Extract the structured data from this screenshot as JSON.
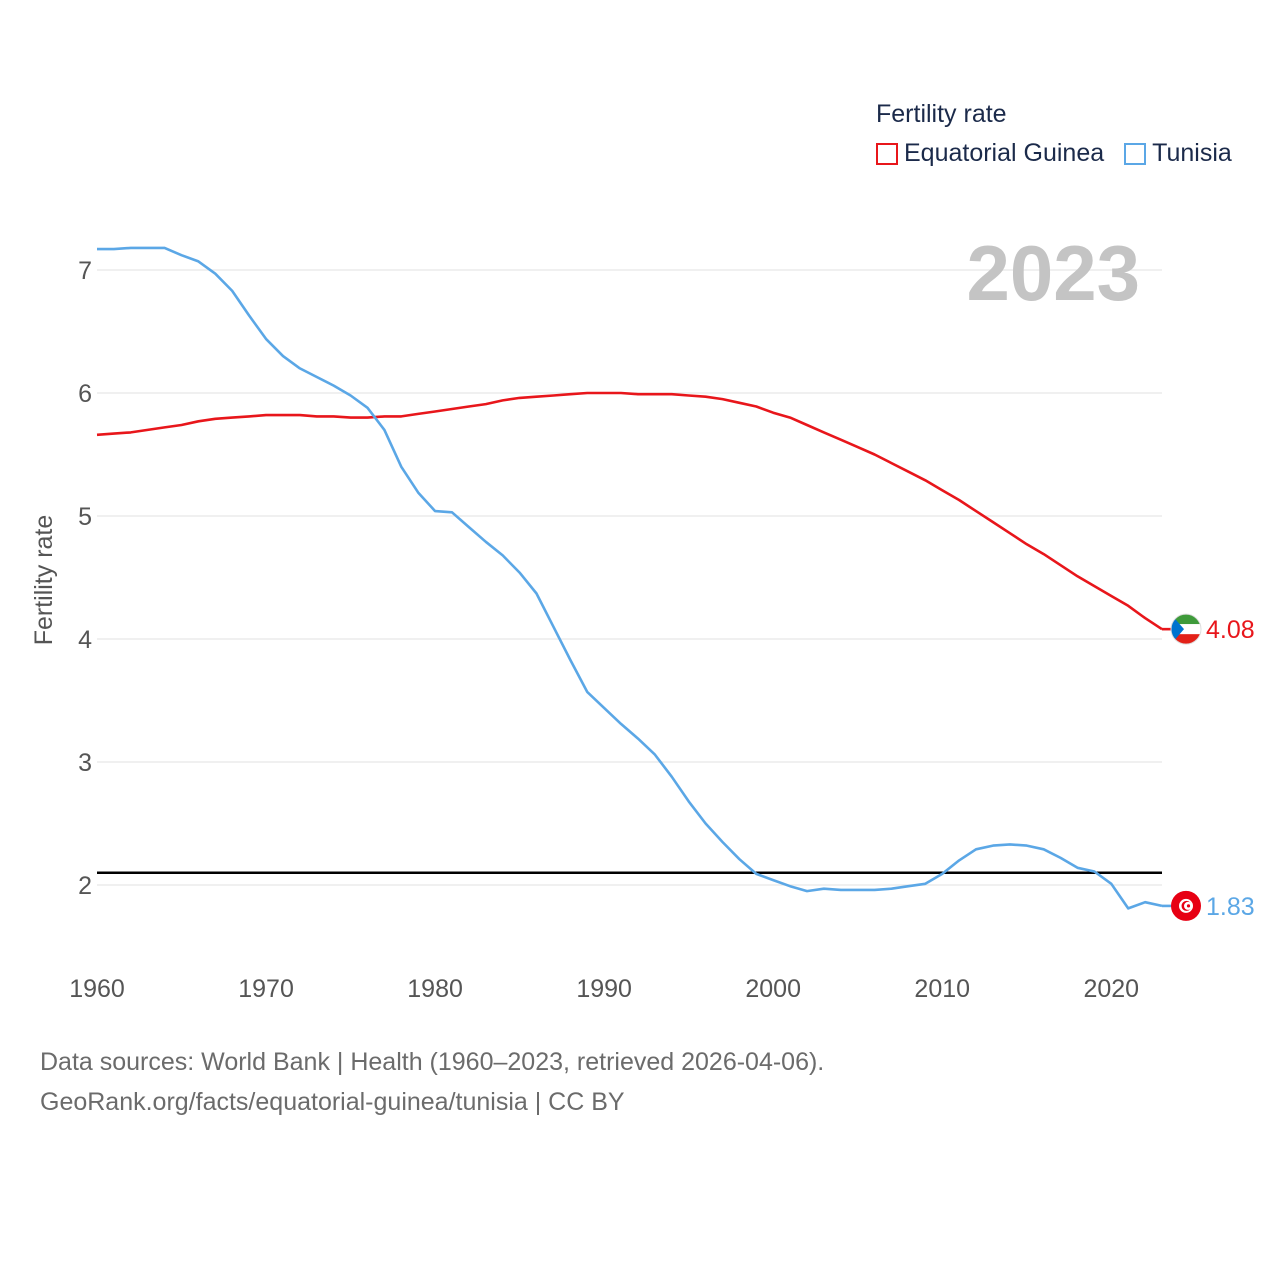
{
  "chart_data": {
    "type": "line",
    "title": "Fertility rate",
    "ylabel": "Fertility rate",
    "xlabel": "",
    "year_label": "2023",
    "xlim": [
      1960,
      2023
    ],
    "ylim": [
      1.5,
      7.3
    ],
    "x_ticks": [
      1960,
      1970,
      1980,
      1990,
      2000,
      2010,
      2020
    ],
    "y_ticks": [
      2,
      3,
      4,
      5,
      6,
      7
    ],
    "reference_line": 2.1,
    "x": [
      1960,
      1961,
      1962,
      1963,
      1964,
      1965,
      1966,
      1967,
      1968,
      1969,
      1970,
      1971,
      1972,
      1973,
      1974,
      1975,
      1976,
      1977,
      1978,
      1979,
      1980,
      1981,
      1982,
      1983,
      1984,
      1985,
      1986,
      1987,
      1988,
      1989,
      1990,
      1991,
      1992,
      1993,
      1994,
      1995,
      1996,
      1997,
      1998,
      1999,
      2000,
      2001,
      2002,
      2003,
      2004,
      2005,
      2006,
      2007,
      2008,
      2009,
      2010,
      2011,
      2012,
      2013,
      2014,
      2015,
      2016,
      2017,
      2018,
      2019,
      2020,
      2021,
      2022,
      2023
    ],
    "series": [
      {
        "name": "Equatorial Guinea",
        "color": "#e8161b",
        "end_label": "4.08",
        "values": [
          5.66,
          5.67,
          5.68,
          5.7,
          5.72,
          5.74,
          5.77,
          5.79,
          5.8,
          5.81,
          5.82,
          5.82,
          5.82,
          5.81,
          5.81,
          5.8,
          5.8,
          5.81,
          5.81,
          5.83,
          5.85,
          5.87,
          5.89,
          5.91,
          5.94,
          5.96,
          5.97,
          5.98,
          5.99,
          6.0,
          6.0,
          6.0,
          5.99,
          5.99,
          5.99,
          5.98,
          5.97,
          5.95,
          5.92,
          5.89,
          5.84,
          5.8,
          5.74,
          5.68,
          5.62,
          5.56,
          5.5,
          5.43,
          5.36,
          5.29,
          5.21,
          5.13,
          5.04,
          4.95,
          4.86,
          4.77,
          4.69,
          4.6,
          4.51,
          4.43,
          4.35,
          4.27,
          4.17,
          4.08
        ]
      },
      {
        "name": "Tunisia",
        "color": "#5ba7e6",
        "end_label": "1.83",
        "values": [
          7.17,
          7.17,
          7.18,
          7.18,
          7.18,
          7.12,
          7.07,
          6.97,
          6.83,
          6.63,
          6.44,
          6.3,
          6.2,
          6.13,
          6.06,
          5.98,
          5.88,
          5.7,
          5.4,
          5.19,
          5.04,
          5.03,
          4.91,
          4.79,
          4.68,
          4.54,
          4.37,
          4.1,
          3.83,
          3.57,
          3.44,
          3.31,
          3.19,
          3.06,
          2.88,
          2.68,
          2.5,
          2.35,
          2.21,
          2.09,
          2.04,
          1.99,
          1.95,
          1.97,
          1.96,
          1.96,
          1.96,
          1.97,
          1.99,
          2.01,
          2.09,
          2.2,
          2.29,
          2.32,
          2.33,
          2.32,
          2.29,
          2.22,
          2.14,
          2.11,
          2.01,
          1.81,
          1.86,
          1.83
        ]
      }
    ]
  },
  "legend": {
    "title": "Fertility rate",
    "items": [
      {
        "label": "Equatorial Guinea",
        "color": "#e8161b"
      },
      {
        "label": "Tunisia",
        "color": "#5ba7e6"
      }
    ]
  },
  "source": {
    "line1": "Data sources: World Bank | Health (1960–2023, retrieved 2026-04-06).",
    "line2": "GeoRank.org/facts/equatorial-guinea/tunisia | CC BY"
  },
  "flags": [
    {
      "country": "Equatorial Guinea",
      "icon": "equatorial-guinea-flag-icon"
    },
    {
      "country": "Tunisia",
      "icon": "tunisia-flag-icon"
    }
  ]
}
